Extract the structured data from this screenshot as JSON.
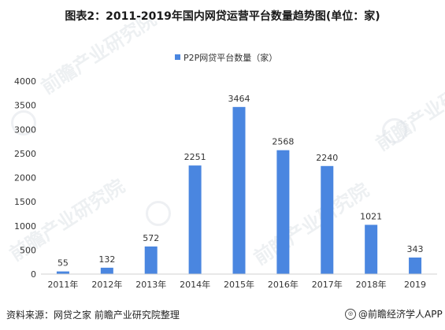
{
  "title": "图表2：2011-2019年国内网贷运营平台数量趋势图(单位：家)",
  "watermark_text": "前瞻产业研究院",
  "footer": {
    "source": "资料来源：网贷之家 前瞻产业研究院整理",
    "brand": "@前瞻经济学人APP"
  },
  "colors": {
    "bar": "#4a86e0",
    "axis": "#d0d0d0",
    "text": "#333333"
  },
  "chart_data": {
    "type": "bar",
    "title": "图表2：2011-2019年国内网贷运营平台数量趋势图(单位：家)",
    "legend": {
      "position": "top",
      "label": "P2P网贷平台数量（家）"
    },
    "categories": [
      "2011年",
      "2012年",
      "2013年",
      "2014年",
      "2015年",
      "2016年",
      "2017年",
      "2018年",
      "2019"
    ],
    "series": [
      {
        "name": "P2P网贷平台数量（家）",
        "values": [
          55,
          132,
          572,
          2251,
          3464,
          2568,
          2240,
          1021,
          343
        ]
      }
    ],
    "ylim": [
      0,
      4000
    ],
    "yticks": [
      0,
      500,
      1000,
      1500,
      2000,
      2500,
      3000,
      3500,
      4000
    ],
    "grid": false,
    "data_labels": true
  }
}
